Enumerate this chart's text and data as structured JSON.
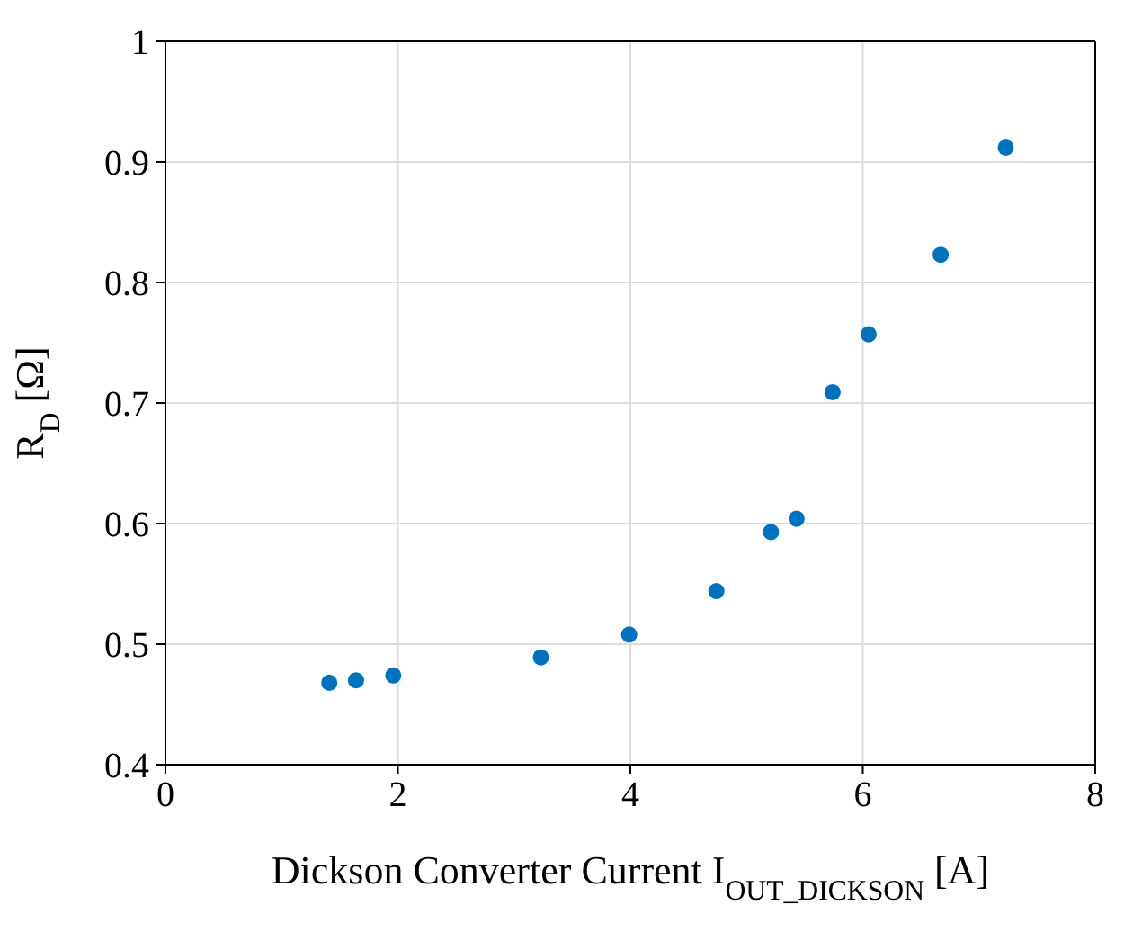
{
  "chart_data": {
    "type": "scatter",
    "xlabel": "Dickson Converter Current I$_{OUT_DICKSON}$ [A]",
    "ylabel": "R$_{D}$ [Ω]",
    "x": [
      1.41,
      1.64,
      1.96,
      3.23,
      3.99,
      4.74,
      5.21,
      5.43,
      5.74,
      6.05,
      6.67,
      7.23
    ],
    "series": [
      {
        "color": "#0072bd",
        "values": [
          0.468,
          0.47,
          0.474,
          0.489,
          0.508,
          0.544,
          0.593,
          0.604,
          0.709,
          0.757,
          0.823,
          0.912
        ]
      }
    ],
    "xlim": [
      0,
      8
    ],
    "xticks": [
      0,
      2,
      4,
      6,
      8
    ],
    "ylim": [
      0.4,
      1
    ],
    "yticks": [
      0.4,
      0.5,
      0.6,
      0.7,
      0.8,
      0.9,
      1
    ],
    "grid": true,
    "marker": "circle"
  }
}
